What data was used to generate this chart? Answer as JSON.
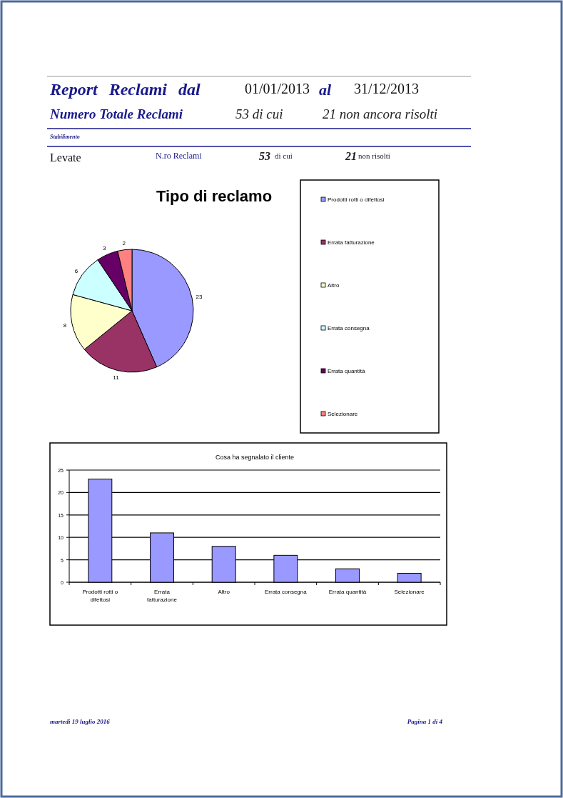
{
  "chart_data": [
    {
      "type": "other",
      "annotations": [
        "Report Reclami dal",
        "01/01/2013",
        "al",
        "31/12/2013",
        "Numero Totale Reclami",
        "53 di cui",
        "21 non ancora risolti",
        "Stabilimento",
        "Levate",
        "N.ro Reclami",
        "53",
        "di cui",
        "21",
        "non risolti"
      ]
    },
    {
      "type": "pie",
      "title": "Tipo di reclamo",
      "categories": [
        "Prodotti rotti o difettosi",
        "Errata fatturazione",
        "Altro",
        "Errata consegna",
        "Errata quantità",
        "Selezionare"
      ],
      "values": [
        23,
        11,
        8,
        6,
        3,
        2
      ],
      "colors": [
        "#9999ff",
        "#993366",
        "#ffffcc",
        "#ccffff",
        "#660066",
        "#ff8080"
      ],
      "data_labels": true,
      "legend": "right"
    },
    {
      "type": "bar",
      "title": "Cosa ha segnalato il cliente",
      "categories": [
        "Prodotti rotti o difettosi",
        "Errata fatturazione",
        "Altro",
        "Errata consegna",
        "Errata quantità",
        "Selezionare"
      ],
      "values": [
        23,
        11,
        8,
        6,
        3,
        2
      ],
      "color": "#9999ff",
      "ylim": [
        0,
        25
      ],
      "yticks": [
        0,
        5,
        10,
        15,
        20,
        25
      ],
      "grid": "y",
      "annotations": [
        "martedì 19 luglio 2016",
        "Pagina 1 di 4"
      ]
    }
  ]
}
